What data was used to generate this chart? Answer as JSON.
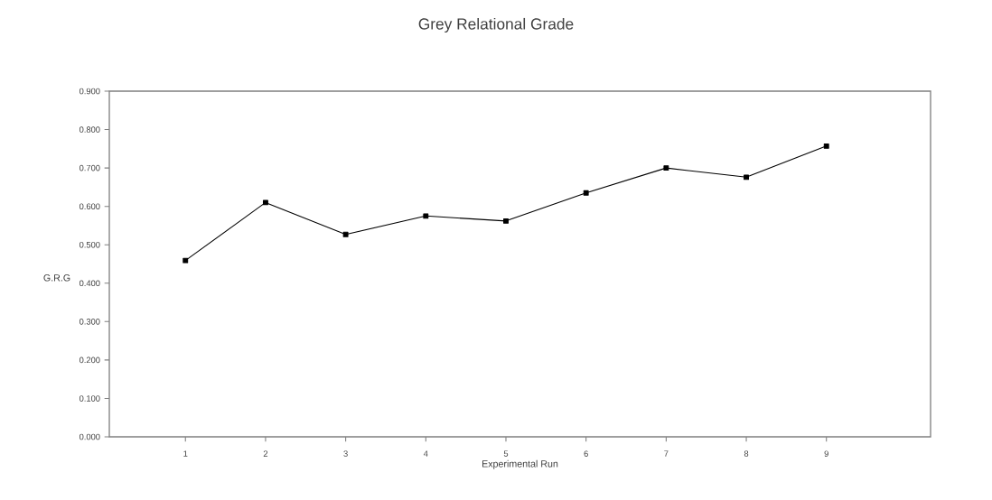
{
  "chart_data": {
    "type": "line",
    "title": "Grey Relational Grade",
    "xlabel": "Experimental Run",
    "ylabel": "G.R.G",
    "x": [
      1,
      2,
      3,
      4,
      5,
      6,
      7,
      8,
      9
    ],
    "values": [
      0.459,
      0.61,
      0.527,
      0.575,
      0.562,
      0.635,
      0.7,
      0.676,
      0.757
    ],
    "color": "#000000",
    "marker": "square",
    "line_style": "solid",
    "xlim": [
      0.05,
      10.3
    ],
    "xticks": [
      1,
      2,
      3,
      4,
      5,
      6,
      7,
      8,
      9
    ],
    "ylim": [
      0,
      0.9
    ],
    "yticks": [
      {
        "value": 0,
        "label": "0.000"
      },
      {
        "value": 0.1,
        "label": "0.100"
      },
      {
        "value": 0.2,
        "label": "0.200"
      },
      {
        "value": 0.3,
        "label": "0.300"
      },
      {
        "value": 0.4,
        "label": "0.400"
      },
      {
        "value": 0.5,
        "label": "0.500"
      },
      {
        "value": 0.6,
        "label": "0.600"
      },
      {
        "value": 0.7,
        "label": "0.700"
      },
      {
        "value": 0.8,
        "label": "0.800"
      },
      {
        "value": 0.9,
        "label": "0.900"
      }
    ]
  }
}
